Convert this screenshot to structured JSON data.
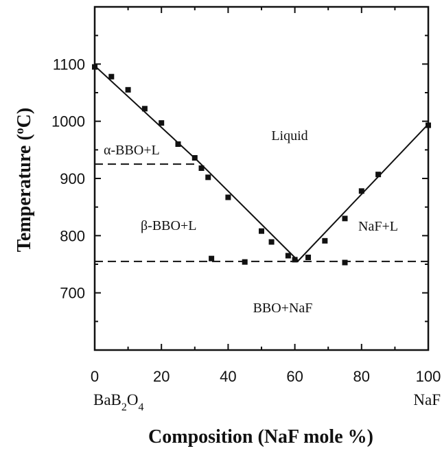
{
  "chart_data": {
    "type": "scatter",
    "title": "",
    "xlabel": "Composition  (NaF mole %)",
    "ylabel_parts": [
      "Temperature  (",
      "o",
      "C)"
    ],
    "xlim": [
      0,
      100
    ],
    "ylim": [
      600,
      1200
    ],
    "x_ticks": [
      "0",
      "20",
      "40",
      "60",
      "80",
      "100"
    ],
    "y_ticks": [
      "700",
      "800",
      "900",
      "1000",
      "1100"
    ],
    "end_labels": {
      "left": {
        "base": "BaB",
        "sub1": "2",
        "mid": "O",
        "sub2": "4"
      },
      "right": "NaF"
    },
    "regions": {
      "liquid": "Liquid",
      "alpha": "α-BBO+L",
      "beta": "β-BBO+L",
      "naf_l": "NaF+L",
      "bbo_naf": "BBO+NaF"
    },
    "series": [
      {
        "points": [
          [
            0,
            1095
          ],
          [
            5,
            1078
          ],
          [
            10,
            1055
          ],
          [
            15,
            1022
          ],
          [
            20,
            997
          ],
          [
            25,
            960
          ],
          [
            30,
            936
          ],
          [
            32,
            918
          ],
          [
            34,
            902
          ],
          [
            40,
            867
          ],
          [
            50,
            808
          ],
          [
            53,
            789
          ],
          [
            58,
            765
          ],
          [
            60,
            758
          ],
          [
            64,
            762
          ],
          [
            69,
            791
          ],
          [
            75,
            830
          ],
          [
            80,
            878
          ],
          [
            85,
            907
          ],
          [
            100,
            993
          ],
          [
            35,
            760
          ],
          [
            45,
            754
          ],
          [
            75,
            753
          ]
        ]
      }
    ],
    "liquidus_left": [
      [
        0,
        1097
      ],
      [
        31,
        930
      ],
      [
        61,
        756
      ]
    ],
    "liquidus_right": [
      [
        61,
        756
      ],
      [
        100,
        995
      ]
    ],
    "eutectic_line": {
      "y": 755,
      "x_start": 0,
      "x_end": 100
    },
    "alpha_beta_transition": {
      "y": 925,
      "x_start": 0,
      "x_end": 31
    },
    "grid": false,
    "legend": "none"
  }
}
